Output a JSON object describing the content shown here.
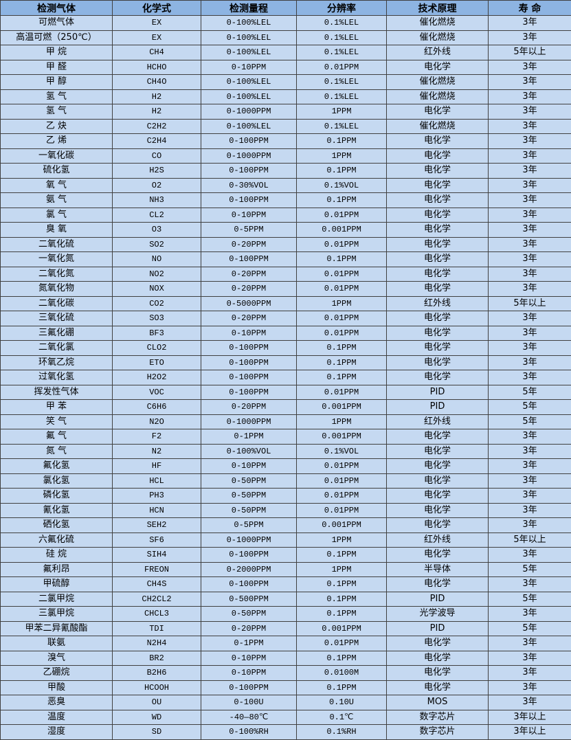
{
  "colors": {
    "header_bg": "#8db4e2",
    "row_bg": "#c5d9f1",
    "border": "#404040"
  },
  "table": {
    "headers": [
      "检测气体",
      "化学式",
      "检测量程",
      "分辨率",
      "技术原理",
      "寿 命"
    ],
    "rows": [
      [
        "可燃气体",
        "EX",
        "0-100%LEL",
        "0.1%LEL",
        "催化燃烧",
        "3年"
      ],
      [
        "高温可燃（250℃）",
        "EX",
        "0-100%LEL",
        "0.1%LEL",
        "催化燃烧",
        "3年"
      ],
      [
        "甲 烷",
        "CH4",
        "0-100%LEL",
        "0.1%LEL",
        "红外线",
        "5年以上"
      ],
      [
        "甲 醛",
        "HCHO",
        "0-10PPM",
        "0.01PPM",
        "电化学",
        "3年"
      ],
      [
        "甲 醇",
        "CH4O",
        "0-100%LEL",
        "0.1%LEL",
        "催化燃烧",
        "3年"
      ],
      [
        "氢 气",
        "H2",
        "0-100%LEL",
        "0.1%LEL",
        "催化燃烧",
        "3年"
      ],
      [
        "氢 气",
        "H2",
        "0-1000PPM",
        "1PPM",
        "电化学",
        "3年"
      ],
      [
        "乙 炔",
        "C2H2",
        "0-100%LEL",
        "0.1%LEL",
        "催化燃烧",
        "3年"
      ],
      [
        "乙 烯",
        "C2H4",
        "0-100PPM",
        "0.1PPM",
        "电化学",
        "3年"
      ],
      [
        "一氧化碳",
        "CO",
        "0-1000PPM",
        "1PPM",
        "电化学",
        "3年"
      ],
      [
        "硫化氢",
        "H2S",
        "0-100PPM",
        "0.1PPM",
        "电化学",
        "3年"
      ],
      [
        "氧 气",
        "O2",
        "0-30%VOL",
        "0.1%VOL",
        "电化学",
        "3年"
      ],
      [
        "氨 气",
        "NH3",
        "0-100PPM",
        "0.1PPM",
        "电化学",
        "3年"
      ],
      [
        "氯 气",
        "CL2",
        "0-10PPM",
        "0.01PPM",
        "电化学",
        "3年"
      ],
      [
        "臭 氧",
        "O3",
        "0-5PPM",
        "0.001PPM",
        "电化学",
        "3年"
      ],
      [
        "二氧化硫",
        "SO2",
        "0-20PPM",
        "0.01PPM",
        "电化学",
        "3年"
      ],
      [
        "一氧化氮",
        "NO",
        "0-100PPM",
        "0.1PPM",
        "电化学",
        "3年"
      ],
      [
        "二氧化氮",
        "NO2",
        "0-20PPM",
        "0.01PPM",
        "电化学",
        "3年"
      ],
      [
        "氮氧化物",
        "NOX",
        "0-20PPM",
        "0.01PPM",
        "电化学",
        "3年"
      ],
      [
        "二氧化碳",
        "CO2",
        "0-5000PPM",
        "1PPM",
        "红外线",
        "5年以上"
      ],
      [
        "三氧化硫",
        "SO3",
        "0-20PPM",
        "0.01PPM",
        "电化学",
        "3年"
      ],
      [
        "三氟化硼",
        "BF3",
        "0-10PPM",
        "0.01PPM",
        "电化学",
        "3年"
      ],
      [
        "二氧化氯",
        "CLO2",
        "0-100PPM",
        "0.1PPM",
        "电化学",
        "3年"
      ],
      [
        "环氧乙烷",
        "ETO",
        "0-100PPM",
        "0.1PPM",
        "电化学",
        "3年"
      ],
      [
        "过氧化氢",
        "H2O2",
        "0-100PPM",
        "0.1PPM",
        "电化学",
        "3年"
      ],
      [
        "挥发性气体",
        "VOC",
        "0-100PPM",
        "0.01PPM",
        "PID",
        "5年"
      ],
      [
        "甲 苯",
        "C6H6",
        "0-20PPM",
        "0.001PPM",
        "PID",
        "5年"
      ],
      [
        "笑 气",
        "N2O",
        "0-1000PPM",
        "1PPM",
        "红外线",
        "5年"
      ],
      [
        "氟 气",
        "F2",
        "0-1PPM",
        "0.001PPM",
        "电化学",
        "3年"
      ],
      [
        "氮 气",
        "N2",
        "0-100%VOL",
        "0.1%VOL",
        "电化学",
        "3年"
      ],
      [
        "氟化氢",
        "HF",
        "0-10PPM",
        "0.01PPM",
        "电化学",
        "3年"
      ],
      [
        "氯化氢",
        "HCL",
        "0-50PPM",
        "0.01PPM",
        "电化学",
        "3年"
      ],
      [
        "磷化氢",
        "PH3",
        "0-50PPM",
        "0.01PPM",
        "电化学",
        "3年"
      ],
      [
        "氰化氢",
        "HCN",
        "0-50PPM",
        "0.01PPM",
        "电化学",
        "3年"
      ],
      [
        "硒化氢",
        "SEH2",
        "0-5PPM",
        "0.001PPM",
        "电化学",
        "3年"
      ],
      [
        "六氟化硫",
        "SF6",
        "0-1000PPM",
        "1PPM",
        "红外线",
        "5年以上"
      ],
      [
        "硅 烷",
        "SIH4",
        "0-100PPM",
        "0.1PPM",
        "电化学",
        "3年"
      ],
      [
        "氟利昂",
        "FREON",
        "0-2000PPM",
        "1PPM",
        "半导体",
        "5年"
      ],
      [
        "甲硫醇",
        "CH4S",
        "0-100PPM",
        "0.1PPM",
        "电化学",
        "3年"
      ],
      [
        "二氯甲烷",
        "CH2CL2",
        "0-500PPM",
        "0.1PPM",
        "PID",
        "5年"
      ],
      [
        "三氯甲烷",
        "CHCL3",
        "0-50PPM",
        "0.1PPM",
        "光学波导",
        "3年"
      ],
      [
        "甲苯二异氰酸酯",
        "TDI",
        "0-20PPM",
        "0.001PPM",
        "PID",
        "5年"
      ],
      [
        "联氨",
        "N2H4",
        "0-1PPM",
        "0.01PPM",
        "电化学",
        "3年"
      ],
      [
        "溴气",
        "BR2",
        "0-10PPM",
        "0.1PPM",
        "电化学",
        "3年"
      ],
      [
        "乙硼烷",
        "B2H6",
        "0-10PPM",
        "0.0100M",
        "电化学",
        "3年"
      ],
      [
        "甲酸",
        "HCOOH",
        "0-100PPM",
        "0.1PPM",
        "电化学",
        "3年"
      ],
      [
        "恶臭",
        "OU",
        "0-100U",
        "0.10U",
        "MOS",
        "3年"
      ],
      [
        "温度",
        "WD",
        "-40—80℃",
        "0.1℃",
        "数字芯片",
        "3年以上"
      ],
      [
        "湿度",
        "SD",
        "0-100%RH",
        "0.1%RH",
        "数字芯片",
        "3年以上"
      ]
    ]
  }
}
